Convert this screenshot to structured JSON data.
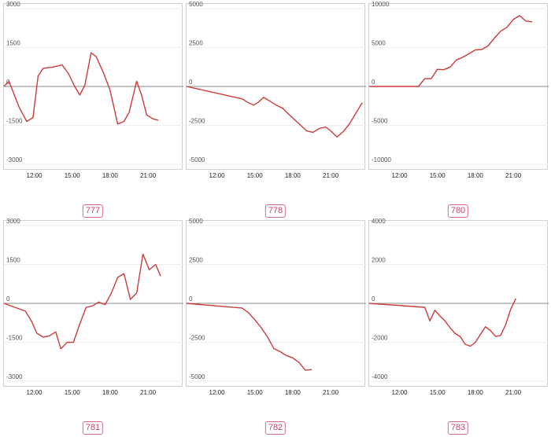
{
  "colors": {
    "line": "#cc3a3a",
    "zero_line": "#8a8a8a",
    "grid": "#eeeeee",
    "badge": "#c8436a"
  },
  "chart_data": [
    {
      "id": "777",
      "type": "line",
      "ylim": [
        -3000,
        3000
      ],
      "yticks": [
        3000,
        1500,
        0,
        -1500,
        -3000
      ],
      "xlim": [
        9.6,
        23.8
      ],
      "xticks": [
        12,
        15,
        18,
        21
      ],
      "xtick_labels": [
        "12:00",
        "15:00",
        "18:00",
        "21:00"
      ],
      "series": [
        {
          "x": [
            9.6,
            10.0,
            10.8,
            11.4,
            11.9,
            12.3,
            12.7,
            13.5,
            14.2,
            14.7,
            15.2,
            15.6,
            16.0,
            16.5,
            16.9,
            17.5,
            18.0,
            18.6,
            19.1,
            19.5,
            20.1,
            20.5,
            20.9,
            21.4,
            21.8
          ],
          "y": [
            0,
            200,
            -800,
            -1350,
            -1200,
            400,
            700,
            750,
            830,
            500,
            0,
            -330,
            50,
            1300,
            1150,
            500,
            -150,
            -1450,
            -1350,
            -1000,
            200,
            -350,
            -1100,
            -1250,
            -1300
          ]
        }
      ]
    },
    {
      "id": "778",
      "type": "line",
      "ylim": [
        -5000,
        5000
      ],
      "yticks": [
        5000,
        2500,
        0,
        -2500,
        -5000
      ],
      "xlim": [
        9.6,
        23.8
      ],
      "xticks": [
        12,
        15,
        18,
        21
      ],
      "xtick_labels": [
        "12:00",
        "15:00",
        "18:00",
        "21:00"
      ],
      "series": [
        {
          "x": [
            9.6,
            14.0,
            14.5,
            14.9,
            15.3,
            15.7,
            16.1,
            16.7,
            17.2,
            17.9,
            18.5,
            19.1,
            19.6,
            20.1,
            20.6,
            21.0,
            21.5,
            22.0,
            22.5,
            23.0,
            23.5
          ],
          "y": [
            0,
            -800,
            -1050,
            -1200,
            -1000,
            -700,
            -900,
            -1200,
            -1400,
            -1950,
            -2400,
            -2850,
            -2950,
            -2700,
            -2600,
            -2850,
            -3250,
            -2900,
            -2400,
            -1700,
            -1050
          ]
        }
      ]
    },
    {
      "id": "780",
      "type": "line",
      "ylim": [
        -10000,
        10000
      ],
      "yticks": [
        10000,
        5000,
        0,
        -5000,
        -10000
      ],
      "xlim": [
        9.6,
        23.8
      ],
      "xticks": [
        12,
        15,
        18,
        21
      ],
      "xtick_labels": [
        "12:00",
        "15:00",
        "18:00",
        "21:00"
      ],
      "series": [
        {
          "x": [
            9.6,
            13.5,
            14.0,
            14.5,
            15.0,
            15.5,
            16.0,
            16.5,
            17.0,
            17.5,
            18.0,
            18.5,
            19.0,
            19.5,
            20.0,
            20.5,
            21.0,
            21.5,
            22.0,
            22.5
          ],
          "y": [
            0,
            0,
            1000,
            1000,
            2200,
            2150,
            2500,
            3400,
            3750,
            4200,
            4700,
            4750,
            5200,
            6200,
            7100,
            7600,
            8600,
            9100,
            8400,
            8300
          ]
        }
      ]
    },
    {
      "id": "781",
      "type": "line",
      "ylim": [
        -3000,
        3000
      ],
      "yticks": [
        3000,
        1500,
        0,
        -1500,
        -3000
      ],
      "xlim": [
        9.6,
        23.8
      ],
      "xticks": [
        12,
        15,
        18,
        21
      ],
      "xtick_labels": [
        "12:00",
        "15:00",
        "18:00",
        "21:00"
      ],
      "series": [
        {
          "x": [
            9.6,
            11.3,
            11.8,
            12.2,
            12.7,
            13.2,
            13.7,
            14.1,
            14.6,
            15.1,
            15.6,
            16.1,
            16.6,
            17.1,
            17.6,
            18.1,
            18.6,
            19.1,
            19.6,
            20.1,
            20.6,
            21.1,
            21.6,
            22.0
          ],
          "y": [
            0,
            -300,
            -700,
            -1150,
            -1300,
            -1250,
            -1100,
            -1750,
            -1500,
            -1500,
            -800,
            -150,
            -100,
            50,
            -50,
            400,
            1000,
            1150,
            150,
            400,
            1900,
            1300,
            1500,
            1050
          ]
        }
      ]
    },
    {
      "id": "782",
      "type": "line",
      "ylim": [
        -5000,
        5000
      ],
      "yticks": [
        5000,
        2500,
        0,
        -2500,
        -5000
      ],
      "xlim": [
        9.6,
        23.8
      ],
      "xticks": [
        12,
        15,
        18,
        21
      ],
      "xtick_labels": [
        "12:00",
        "15:00",
        "18:00",
        "21:00"
      ],
      "series": [
        {
          "x": [
            9.6,
            14.0,
            14.5,
            15.0,
            15.5,
            16.0,
            16.5,
            17.0,
            17.5,
            18.0,
            18.5,
            19.0,
            19.5
          ],
          "y": [
            0,
            -300,
            -600,
            -1050,
            -1550,
            -2150,
            -2900,
            -3100,
            -3350,
            -3500,
            -3800,
            -4300,
            -4250
          ]
        }
      ]
    },
    {
      "id": "783",
      "type": "line",
      "ylim": [
        -4000,
        4000
      ],
      "yticks": [
        4000,
        2000,
        0,
        -2000,
        -4000
      ],
      "xlim": [
        9.6,
        23.8
      ],
      "xticks": [
        12,
        15,
        18,
        21
      ],
      "xtick_labels": [
        "12:00",
        "15:00",
        "18:00",
        "21:00"
      ],
      "series": [
        {
          "x": [
            9.6,
            14.0,
            14.4,
            14.8,
            15.2,
            15.6,
            16.0,
            16.4,
            16.8,
            17.2,
            17.6,
            18.0,
            18.4,
            18.8,
            19.2,
            19.6,
            20.0,
            20.4,
            20.8,
            21.2
          ],
          "y": [
            0,
            -200,
            -900,
            -350,
            -650,
            -900,
            -1250,
            -1550,
            -1700,
            -2100,
            -2200,
            -2000,
            -1600,
            -1200,
            -1400,
            -1700,
            -1650,
            -1100,
            -300,
            250
          ]
        }
      ]
    }
  ]
}
